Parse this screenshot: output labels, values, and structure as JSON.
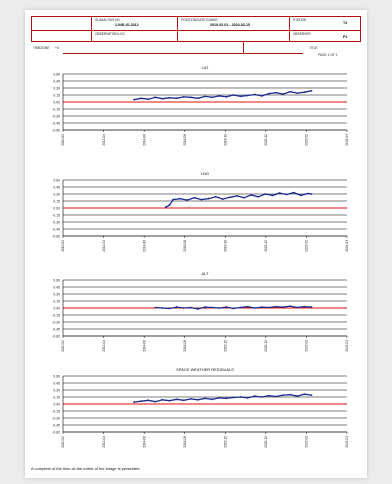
{
  "header": {
    "f1_label": "ID ANALYSIS NO.",
    "f1_value": "1-IND-IO-2012",
    "f2_label": "POSITION/DATE RANGE",
    "f2_value": "2010-02-01 - 2024-03-15",
    "f3_label": "STATION",
    "f3_value": "T4",
    "f4_label": "OBSERVATION LOC",
    "f5_label": "OBSERVER",
    "f5_value": "P1",
    "f6_label": "TIMEZONE",
    "f6_value": "+0",
    "f7_label": "TITLE",
    "f7_value": "PAGE 1 OF 1"
  },
  "colors": {
    "series": "#1a2a8f",
    "reference": "#e01010",
    "border": "#b01010",
    "grid": "#000000"
  },
  "chart_data": [
    {
      "type": "line",
      "title": "LAT",
      "ylabel": "",
      "y_ticks": [
        "0.60",
        "0.45",
        "0.30",
        "0.15",
        "0.00",
        "-0.15",
        "-0.30",
        "-0.45",
        "-0.60"
      ],
      "ref_tick": "0.00",
      "x_ticks": [
        "2010-02",
        "2012-04",
        "2014-06",
        "2016-08",
        "2018-10",
        "2020-12",
        "2022-02",
        "2024-03"
      ],
      "x": [
        2.0,
        2.2,
        2.4,
        2.6,
        2.8,
        3.0,
        3.2,
        3.4,
        3.6,
        3.8,
        4.0,
        4.2,
        4.4,
        4.6,
        4.8,
        5.0,
        5.2,
        5.4,
        5.6,
        5.8,
        6.0,
        6.2,
        6.4,
        6.6,
        6.8,
        7.0
      ],
      "values": [
        0.05,
        0.08,
        0.06,
        0.1,
        0.07,
        0.09,
        0.08,
        0.11,
        0.1,
        0.08,
        0.12,
        0.1,
        0.13,
        0.11,
        0.15,
        0.12,
        0.14,
        0.16,
        0.13,
        0.18,
        0.2,
        0.17,
        0.22,
        0.19,
        0.21,
        0.24
      ],
      "ylim": [
        -0.6,
        0.6
      ],
      "xlim": [
        0,
        8
      ],
      "grid": true
    },
    {
      "type": "line",
      "title": "LNG",
      "ylabel": "",
      "y_ticks": [
        "0.60",
        "0.45",
        "0.30",
        "0.15",
        "0.00",
        "-0.15",
        "-0.30",
        "-0.45",
        "-0.60"
      ],
      "ref_tick": "0.00",
      "x_ticks": [
        "2010-02",
        "2012-04",
        "2014-06",
        "2016-08",
        "2018-10",
        "2020-12",
        "2022-02",
        "2024-03"
      ],
      "x": [
        2.9,
        3.0,
        3.1,
        3.3,
        3.5,
        3.7,
        3.9,
        4.1,
        4.3,
        4.5,
        4.7,
        4.9,
        5.1,
        5.3,
        5.5,
        5.7,
        5.9,
        6.1,
        6.3,
        6.5,
        6.7,
        6.9,
        7.0
      ],
      "values": [
        0.02,
        0.06,
        0.18,
        0.2,
        0.17,
        0.22,
        0.18,
        0.2,
        0.24,
        0.19,
        0.23,
        0.26,
        0.22,
        0.28,
        0.24,
        0.3,
        0.27,
        0.32,
        0.29,
        0.33,
        0.27,
        0.31,
        0.3
      ],
      "ylim": [
        -0.6,
        0.6
      ],
      "xlim": [
        0,
        8
      ],
      "grid": true
    },
    {
      "type": "line",
      "title": "ALT",
      "ylabel": "",
      "y_ticks": [
        "0.60",
        "0.45",
        "0.30",
        "0.15",
        "0.00",
        "-0.15",
        "-0.30",
        "-0.45",
        "-0.60"
      ],
      "ref_tick": "0.00",
      "x_ticks": [
        "2010-02",
        "2012-04",
        "2014-06",
        "2016-08",
        "2018-10",
        "2020-12",
        "2022-02",
        "2024-03"
      ],
      "x": [
        2.6,
        2.8,
        3.0,
        3.2,
        3.4,
        3.6,
        3.8,
        4.0,
        4.2,
        4.4,
        4.6,
        4.8,
        5.0,
        5.2,
        5.4,
        5.6,
        5.8,
        6.0,
        6.2,
        6.4,
        6.6,
        6.8,
        7.0
      ],
      "values": [
        0.01,
        0.0,
        -0.01,
        0.02,
        0.0,
        0.01,
        -0.02,
        0.02,
        0.01,
        0.0,
        0.02,
        -0.01,
        0.01,
        0.03,
        0.0,
        0.02,
        0.01,
        0.03,
        0.02,
        0.04,
        0.01,
        0.03,
        0.02
      ],
      "ylim": [
        -0.6,
        0.6
      ],
      "xlim": [
        0,
        8
      ],
      "grid": true
    },
    {
      "type": "line",
      "title": "SPACE WEATHER RESIDUALS",
      "ylabel": "",
      "y_ticks": [
        "0.60",
        "0.45",
        "0.30",
        "0.15",
        "0.00",
        "-0.15",
        "-0.30",
        "-0.45",
        "-0.60"
      ],
      "ref_tick": "0.00",
      "x_ticks": [
        "2010-02",
        "2012-04",
        "2014-06",
        "2016-08",
        "2018-10",
        "2020-12",
        "2022-02",
        "2024-03"
      ],
      "x": [
        2.0,
        2.2,
        2.4,
        2.6,
        2.8,
        3.0,
        3.2,
        3.4,
        3.6,
        3.8,
        4.0,
        4.2,
        4.4,
        4.6,
        4.8,
        5.0,
        5.2,
        5.4,
        5.6,
        5.8,
        6.0,
        6.2,
        6.4,
        6.6,
        6.8,
        7.0
      ],
      "values": [
        0.04,
        0.06,
        0.08,
        0.05,
        0.09,
        0.07,
        0.1,
        0.08,
        0.11,
        0.09,
        0.12,
        0.1,
        0.13,
        0.12,
        0.14,
        0.15,
        0.13,
        0.17,
        0.15,
        0.18,
        0.16,
        0.19,
        0.2,
        0.17,
        0.21,
        0.19
      ],
      "ylim": [
        -0.6,
        0.6
      ],
      "xlim": [
        0,
        8
      ],
      "grid": true
    }
  ],
  "footer": {
    "note": "A complete of the time-of-the-entire of the image is presented"
  }
}
